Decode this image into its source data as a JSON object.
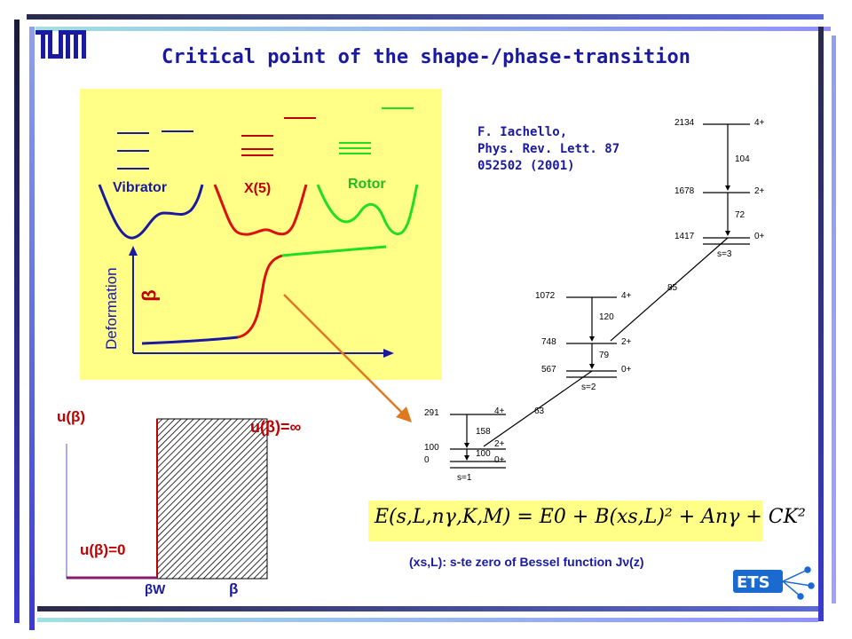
{
  "logo": {
    "text": "TUM"
  },
  "title": "Critical point of the shape-/phase-transition",
  "reference": {
    "line1": "F. Iachello,",
    "line2": "Phys. Rev. Lett. 87",
    "line3": "052502 (2001)"
  },
  "phase_panel": {
    "vibrator": "Vibrator",
    "x5": "X(5)",
    "rotor": "Rotor",
    "deformation": "Deformation",
    "beta": "β"
  },
  "well": {
    "u_beta": "u(β)",
    "u_inf": "u(β)=∞",
    "u_zero": "u(β)=0",
    "beta_w": "βW",
    "beta": "β"
  },
  "level_scheme": {
    "energies": [
      {
        "e": "2134",
        "j": "4+"
      },
      {
        "e": "1678",
        "j": "2+"
      },
      {
        "e": "1417",
        "j": "0+"
      },
      {
        "e": "1072",
        "j": "4+"
      },
      {
        "e": "748",
        "j": "2+"
      },
      {
        "e": "567",
        "j": "0+"
      },
      {
        "e": "291",
        "j": "4+"
      },
      {
        "e": "100",
        "j": "2+"
      },
      {
        "e": "0",
        "j": "0+"
      }
    ],
    "transitions": [
      "104",
      "72",
      "85",
      "120",
      "79",
      "63",
      "158",
      "100"
    ],
    "bands": [
      "s=3",
      "s=2",
      "s=1"
    ]
  },
  "formula": "E(s,L,nγ,K,M) = E0 + B(xs,L)² + Anγ + CK²",
  "bessel": "(xs,L): s-te zero of Bessel function Jν(z)",
  "colors": {
    "title": "#1a1aa0",
    "panel": "#ffff88",
    "accent_red": "#c00000"
  }
}
